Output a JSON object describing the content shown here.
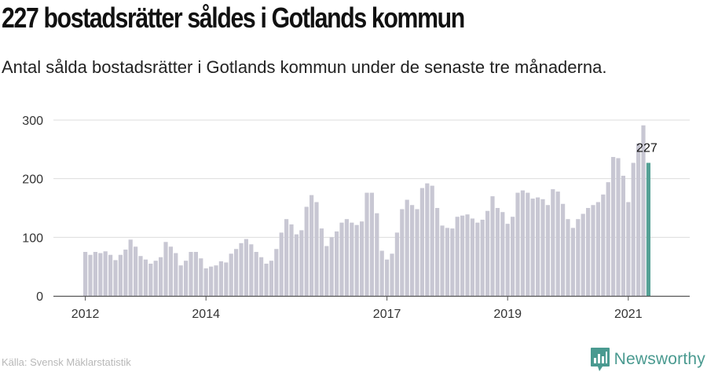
{
  "title": "227 bostadsrätter såldes i Gotlands kommun",
  "subtitle": "Antal sålda bostadsrätter i Gotlands kommun under de senaste tre månaderna.",
  "source": "Källa: Svensk Mäklarstatistik",
  "brand": {
    "name": "Newsworthy",
    "icon": "newsworthy-logo-icon"
  },
  "colors": {
    "bar": "#c8c7d3",
    "highlight": "#55a195",
    "grid": "#dddddd",
    "axis": "#555555",
    "text": "#333333"
  },
  "chart_data": {
    "type": "bar",
    "y_ticks": [
      0,
      100,
      200,
      300
    ],
    "ylim": [
      0,
      310
    ],
    "x_labels": [
      {
        "label": "2012",
        "index": 0
      },
      {
        "label": "2014",
        "index": 24
      },
      {
        "label": "2017",
        "index": 60
      },
      {
        "label": "2019",
        "index": 84
      },
      {
        "label": "2021",
        "index": 108
      }
    ],
    "values": [
      75,
      70,
      75,
      73,
      76,
      70,
      61,
      70,
      79,
      96,
      84,
      68,
      62,
      55,
      60,
      66,
      92,
      84,
      73,
      52,
      60,
      75,
      75,
      64,
      47,
      50,
      52,
      59,
      57,
      72,
      80,
      90,
      97,
      88,
      75,
      66,
      55,
      60,
      80,
      108,
      131,
      122,
      105,
      112,
      152,
      172,
      160,
      115,
      85,
      100,
      110,
      125,
      131,
      125,
      121,
      127,
      176,
      176,
      141,
      77,
      62,
      72,
      108,
      148,
      164,
      155,
      148,
      184,
      192,
      188,
      150,
      120,
      116,
      115,
      135,
      137,
      139,
      132,
      125,
      130,
      145,
      170,
      150,
      143,
      123,
      135,
      176,
      180,
      176,
      166,
      168,
      165,
      155,
      182,
      178,
      157,
      131,
      116,
      131,
      140,
      150,
      155,
      160,
      173,
      194,
      237,
      235,
      205,
      160,
      227,
      260,
      291,
      227
    ],
    "highlight_index": 112,
    "highlight_label": "227"
  }
}
